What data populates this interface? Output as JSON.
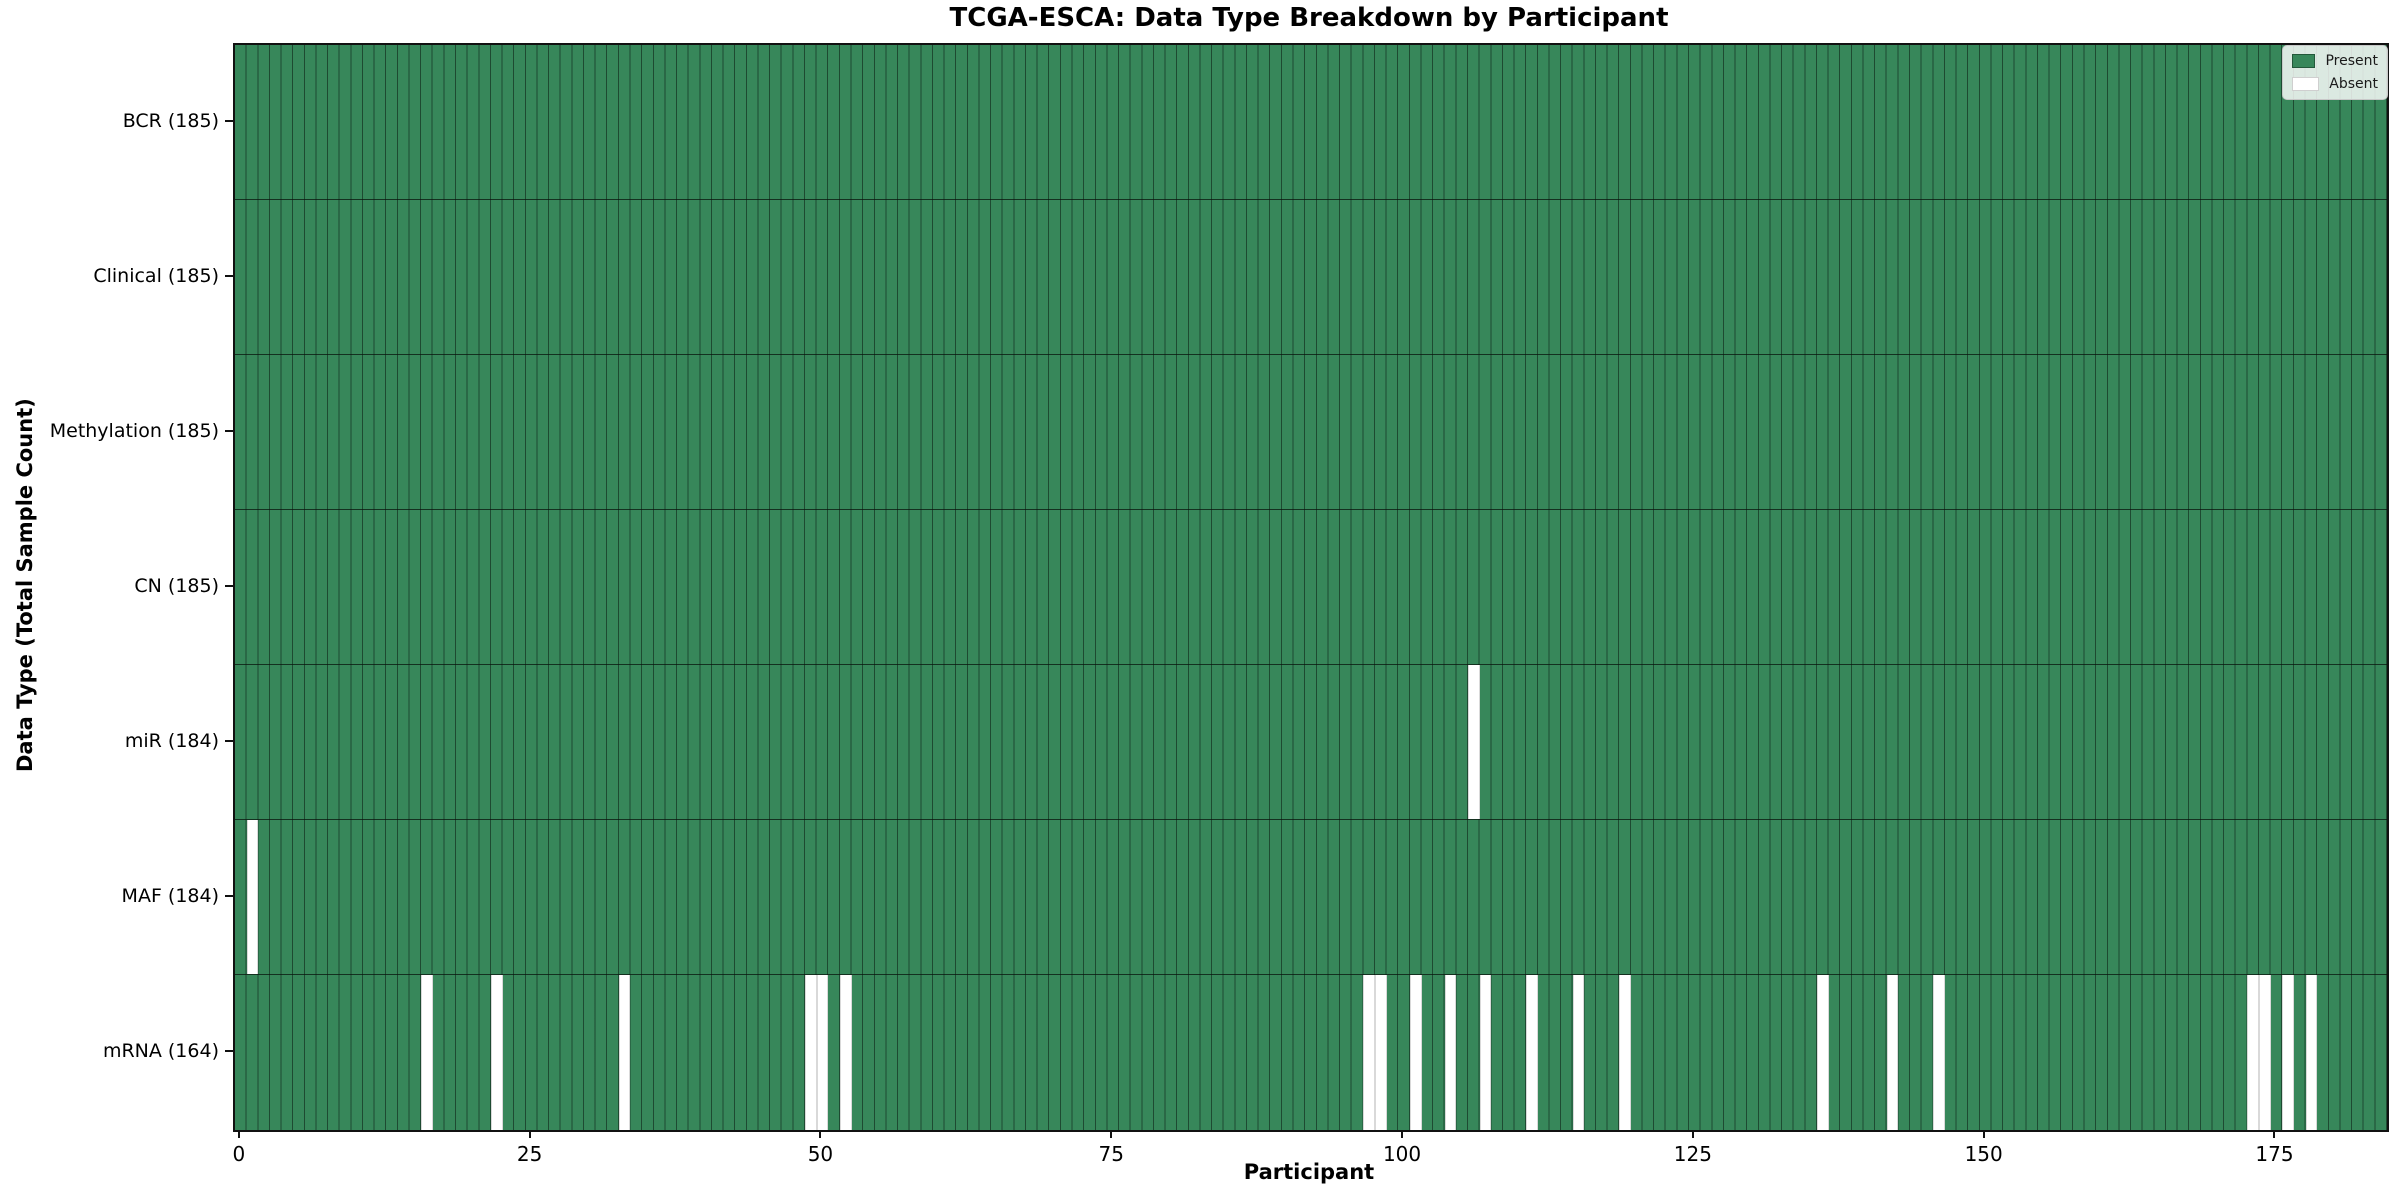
{
  "chart": {
    "title": "TCGA-ESCA: Data Type Breakdown by Participant",
    "x_label": "Participant",
    "y_label": "Data Type (Total Sample Count)",
    "colors": {
      "present": "#37875a",
      "absent": "#ffffff",
      "cell_edge": "rgba(0,0,0,0.45)",
      "absent_edge": "#d9d9d9",
      "axis": "#111111",
      "text": "#000000"
    },
    "legend": {
      "present_label": "Present",
      "absent_label": "Absent"
    }
  },
  "chart_data": {
    "type": "heatmap",
    "title": "TCGA-ESCA: Data Type Breakdown by Participant",
    "xlabel": "Participant",
    "ylabel": "Data Type (Total Sample Count)",
    "legend_entries": [
      "Present",
      "Absent"
    ],
    "legend_position": "upper right",
    "grid": false,
    "x_axis": {
      "n_participants": 185,
      "ticks": [
        0,
        25,
        50,
        75,
        100,
        125,
        150,
        175
      ]
    },
    "rows": [
      {
        "label": "BCR (185)",
        "data_type": "BCR",
        "total_count": 185,
        "absent_participants": []
      },
      {
        "label": "Clinical (185)",
        "data_type": "Clinical",
        "total_count": 185,
        "absent_participants": []
      },
      {
        "label": "Methylation (185)",
        "data_type": "Methylation",
        "total_count": 185,
        "absent_participants": []
      },
      {
        "label": "CN (185)",
        "data_type": "CN",
        "total_count": 185,
        "absent_participants": []
      },
      {
        "label": "miR (184)",
        "data_type": "miR",
        "total_count": 184,
        "absent_participants": [
          106
        ]
      },
      {
        "label": "MAF (184)",
        "data_type": "MAF",
        "total_count": 184,
        "absent_participants": [
          1
        ]
      },
      {
        "label": "mRNA (164)",
        "data_type": "mRNA",
        "total_count": 164,
        "absent_participants": [
          16,
          22,
          33,
          49,
          50,
          52,
          97,
          98,
          101,
          104,
          107,
          111,
          115,
          119,
          136,
          142,
          146,
          173,
          174,
          176,
          178
        ]
      }
    ]
  }
}
